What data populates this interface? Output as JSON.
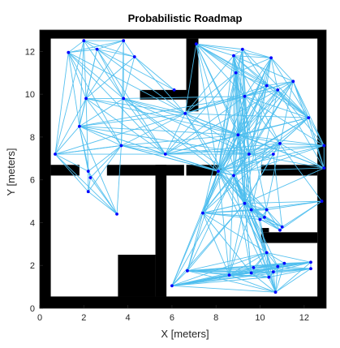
{
  "chart_data": {
    "type": "scatter",
    "title": "Probabilistic Roadmap",
    "xlabel": "X [meters]",
    "ylabel": "Y [meters]",
    "xlim": [
      0,
      13
    ],
    "ylim": [
      0,
      13
    ],
    "xticks": [
      0,
      2,
      4,
      6,
      8,
      10,
      12
    ],
    "yticks": [
      0,
      2,
      4,
      6,
      8,
      10,
      12
    ],
    "grid": false,
    "legend": "none",
    "colors": {
      "edges": "#4dbeee",
      "nodes": "#0000ff",
      "obstacles": "#000000",
      "free": "#ffffff"
    },
    "obstacles": [
      [
        0,
        12.6,
        13,
        0.4
      ],
      [
        0,
        0,
        0.5,
        13
      ],
      [
        12.6,
        0,
        0.4,
        13
      ],
      [
        0,
        0,
        13,
        0.55
      ],
      [
        0.5,
        6.2,
        1.3,
        0.5
      ],
      [
        3.05,
        6.2,
        3.5,
        0.5
      ],
      [
        5.25,
        0.55,
        0.5,
        6.15
      ],
      [
        3.55,
        0.55,
        1.7,
        1.95
      ],
      [
        4.55,
        9.75,
        2.4,
        0.45
      ],
      [
        6.65,
        9.2,
        0.55,
        3.4
      ],
      [
        6.65,
        6.2,
        1.6,
        0.5
      ],
      [
        10.05,
        6.2,
        2.55,
        0.5
      ],
      [
        10.05,
        3.05,
        2.55,
        0.5
      ],
      [
        10.05,
        3.55,
        0.35,
        0.2
      ]
    ],
    "nodes": [
      [
        2.0,
        12.5
      ],
      [
        3.8,
        12.5
      ],
      [
        1.3,
        11.95
      ],
      [
        2.6,
        12.1
      ],
      [
        4.3,
        11.75
      ],
      [
        6.1,
        10.2
      ],
      [
        2.1,
        9.8
      ],
      [
        3.8,
        9.8
      ],
      [
        1.8,
        8.5
      ],
      [
        3.7,
        7.6
      ],
      [
        0.7,
        7.2
      ],
      [
        2.2,
        6.4
      ],
      [
        2.3,
        6.1
      ],
      [
        2.2,
        5.45
      ],
      [
        3.5,
        4.4
      ],
      [
        5.7,
        7.2
      ],
      [
        6.6,
        9.1
      ],
      [
        7.1,
        12.35
      ],
      [
        8.8,
        11.8
      ],
      [
        9.2,
        12.1
      ],
      [
        10.5,
        11.7
      ],
      [
        8.9,
        11.0
      ],
      [
        9.3,
        9.9
      ],
      [
        10.3,
        10.4
      ],
      [
        10.8,
        10.2
      ],
      [
        11.5,
        10.6
      ],
      [
        12.2,
        8.9
      ],
      [
        12.9,
        7.6
      ],
      [
        12.9,
        6.55
      ],
      [
        9.0,
        8.1
      ],
      [
        10.9,
        7.7
      ],
      [
        9.5,
        7.2
      ],
      [
        10.6,
        7.2
      ],
      [
        8.1,
        6.4
      ],
      [
        8.8,
        6.2
      ],
      [
        9.3,
        4.9
      ],
      [
        9.6,
        4.6
      ],
      [
        10.3,
        4.6
      ],
      [
        10.2,
        4.25
      ],
      [
        10.0,
        4.15
      ],
      [
        11.0,
        3.8
      ],
      [
        10.9,
        3.65
      ],
      [
        12.8,
        5.0
      ],
      [
        7.4,
        4.45
      ],
      [
        10.3,
        2.6
      ],
      [
        10.8,
        1.95
      ],
      [
        10.6,
        1.7
      ],
      [
        10.7,
        0.75
      ],
      [
        12.3,
        2.15
      ],
      [
        12.3,
        1.85
      ],
      [
        9.6,
        1.65
      ],
      [
        8.6,
        1.55
      ],
      [
        6.7,
        1.75
      ],
      [
        6.0,
        1.05
      ],
      [
        10.4,
        1.45
      ],
      [
        11.1,
        2.1
      ],
      [
        9.7,
        1.9
      ]
    ],
    "edges": [
      [
        0,
        2
      ],
      [
        0,
        3
      ],
      [
        0,
        1
      ],
      [
        0,
        4
      ],
      [
        0,
        6
      ],
      [
        0,
        7
      ],
      [
        0,
        10
      ],
      [
        0,
        8
      ],
      [
        1,
        3
      ],
      [
        1,
        4
      ],
      [
        1,
        7
      ],
      [
        1,
        6
      ],
      [
        1,
        2
      ],
      [
        1,
        9
      ],
      [
        2,
        3
      ],
      [
        2,
        6
      ],
      [
        2,
        7
      ],
      [
        2,
        8
      ],
      [
        2,
        10
      ],
      [
        2,
        9
      ],
      [
        2,
        16
      ],
      [
        3,
        4
      ],
      [
        3,
        6
      ],
      [
        3,
        7
      ],
      [
        3,
        8
      ],
      [
        3,
        5
      ],
      [
        3,
        15
      ],
      [
        4,
        5
      ],
      [
        4,
        7
      ],
      [
        4,
        6
      ],
      [
        4,
        16
      ],
      [
        6,
        7
      ],
      [
        6,
        8
      ],
      [
        6,
        9
      ],
      [
        6,
        11
      ],
      [
        6,
        15
      ],
      [
        6,
        16
      ],
      [
        6,
        10
      ],
      [
        6,
        29
      ],
      [
        7,
        8
      ],
      [
        7,
        9
      ],
      [
        7,
        16
      ],
      [
        7,
        15
      ],
      [
        7,
        33
      ],
      [
        7,
        29
      ],
      [
        7,
        22
      ],
      [
        8,
        9
      ],
      [
        8,
        10
      ],
      [
        8,
        11
      ],
      [
        8,
        12
      ],
      [
        8,
        15
      ],
      [
        8,
        16
      ],
      [
        8,
        29
      ],
      [
        8,
        31
      ],
      [
        8,
        33
      ],
      [
        8,
        22
      ],
      [
        9,
        10
      ],
      [
        9,
        11
      ],
      [
        9,
        12
      ],
      [
        9,
        13
      ],
      [
        9,
        15
      ],
      [
        9,
        16
      ],
      [
        9,
        33
      ],
      [
        9,
        29
      ],
      [
        10,
        11
      ],
      [
        10,
        13
      ],
      [
        10,
        15
      ],
      [
        10,
        16
      ],
      [
        10,
        9
      ],
      [
        11,
        12
      ],
      [
        11,
        13
      ],
      [
        11,
        14
      ],
      [
        12,
        13
      ],
      [
        12,
        14
      ],
      [
        13,
        14
      ],
      [
        14,
        9
      ],
      [
        14,
        8
      ],
      [
        14,
        10
      ],
      [
        15,
        16
      ],
      [
        15,
        29
      ],
      [
        15,
        31
      ],
      [
        15,
        33
      ],
      [
        15,
        34
      ],
      [
        15,
        21
      ],
      [
        15,
        22
      ],
      [
        15,
        26
      ],
      [
        15,
        27
      ],
      [
        15,
        24
      ],
      [
        15,
        30
      ],
      [
        16,
        17
      ],
      [
        16,
        18
      ],
      [
        16,
        21
      ],
      [
        16,
        22
      ],
      [
        16,
        23
      ],
      [
        16,
        29
      ],
      [
        16,
        26
      ],
      [
        16,
        31
      ],
      [
        16,
        33
      ],
      [
        16,
        25
      ],
      [
        16,
        28
      ],
      [
        17,
        18
      ],
      [
        17,
        19
      ],
      [
        17,
        20
      ],
      [
        17,
        21
      ],
      [
        17,
        22
      ],
      [
        17,
        23
      ],
      [
        17,
        29
      ],
      [
        17,
        24
      ],
      [
        17,
        26
      ],
      [
        17,
        31
      ],
      [
        17,
        33
      ],
      [
        17,
        35
      ],
      [
        18,
        19
      ],
      [
        18,
        20
      ],
      [
        18,
        21
      ],
      [
        18,
        22
      ],
      [
        18,
        23
      ],
      [
        18,
        29
      ],
      [
        18,
        31
      ],
      [
        18,
        33
      ],
      [
        18,
        25
      ],
      [
        18,
        30
      ],
      [
        18,
        26
      ],
      [
        18,
        34
      ],
      [
        18,
        37
      ],
      [
        19,
        20
      ],
      [
        19,
        21
      ],
      [
        19,
        22
      ],
      [
        19,
        23
      ],
      [
        19,
        26
      ],
      [
        19,
        29
      ],
      [
        19,
        31
      ],
      [
        19,
        33
      ],
      [
        19,
        35
      ],
      [
        20,
        21
      ],
      [
        20,
        22
      ],
      [
        20,
        23
      ],
      [
        20,
        24
      ],
      [
        20,
        25
      ],
      [
        20,
        26
      ],
      [
        20,
        29
      ],
      [
        20,
        31
      ],
      [
        20,
        33
      ],
      [
        20,
        34
      ],
      [
        20,
        43
      ],
      [
        21,
        22
      ],
      [
        21,
        23
      ],
      [
        21,
        29
      ],
      [
        21,
        31
      ],
      [
        21,
        33
      ],
      [
        21,
        34
      ],
      [
        21,
        36
      ],
      [
        21,
        43
      ],
      [
        21,
        35
      ],
      [
        22,
        23
      ],
      [
        22,
        24
      ],
      [
        22,
        25
      ],
      [
        22,
        26
      ],
      [
        22,
        27
      ],
      [
        22,
        29
      ],
      [
        22,
        31
      ],
      [
        22,
        33
      ],
      [
        22,
        34
      ],
      [
        22,
        35
      ],
      [
        22,
        42
      ],
      [
        22,
        43
      ],
      [
        23,
        24
      ],
      [
        23,
        25
      ],
      [
        23,
        26
      ],
      [
        23,
        29
      ],
      [
        23,
        31
      ],
      [
        23,
        33
      ],
      [
        23,
        35
      ],
      [
        23,
        43
      ],
      [
        24,
        25
      ],
      [
        24,
        26
      ],
      [
        24,
        27
      ],
      [
        24,
        28
      ],
      [
        24,
        29
      ],
      [
        24,
        33
      ],
      [
        24,
        34
      ],
      [
        24,
        36
      ],
      [
        25,
        26
      ],
      [
        25,
        27
      ],
      [
        25,
        28
      ],
      [
        25,
        29
      ],
      [
        25,
        31
      ],
      [
        25,
        33
      ],
      [
        25,
        34
      ],
      [
        25,
        38
      ],
      [
        26,
        27
      ],
      [
        26,
        28
      ],
      [
        26,
        29
      ],
      [
        26,
        30
      ],
      [
        26,
        31
      ],
      [
        26,
        33
      ],
      [
        26,
        34
      ],
      [
        26,
        43
      ],
      [
        27,
        28
      ],
      [
        27,
        29
      ],
      [
        27,
        30
      ],
      [
        27,
        31
      ],
      [
        27,
        33
      ],
      [
        27,
        34
      ],
      [
        28,
        29
      ],
      [
        28,
        30
      ],
      [
        28,
        31
      ],
      [
        28,
        33
      ],
      [
        28,
        35
      ],
      [
        29,
        30
      ],
      [
        29,
        31
      ],
      [
        29,
        33
      ],
      [
        29,
        34
      ],
      [
        29,
        35
      ],
      [
        29,
        36
      ],
      [
        29,
        43
      ],
      [
        29,
        44
      ],
      [
        29,
        50
      ],
      [
        30,
        31
      ],
      [
        30,
        32
      ],
      [
        30,
        33
      ],
      [
        30,
        34
      ],
      [
        30,
        35
      ],
      [
        31,
        32
      ],
      [
        31,
        33
      ],
      [
        31,
        34
      ],
      [
        31,
        35
      ],
      [
        31,
        36
      ],
      [
        31,
        43
      ],
      [
        32,
        33
      ],
      [
        32,
        34
      ],
      [
        32,
        35
      ],
      [
        32,
        40
      ],
      [
        33,
        34
      ],
      [
        33,
        35
      ],
      [
        33,
        36
      ],
      [
        33,
        37
      ],
      [
        33,
        38
      ],
      [
        33,
        43
      ],
      [
        33,
        44
      ],
      [
        33,
        47
      ],
      [
        33,
        51
      ],
      [
        33,
        52
      ],
      [
        33,
        53
      ],
      [
        34,
        35
      ],
      [
        34,
        36
      ],
      [
        34,
        37
      ],
      [
        34,
        39
      ],
      [
        34,
        43
      ],
      [
        34,
        44
      ],
      [
        34,
        45
      ],
      [
        34,
        46
      ],
      [
        34,
        47
      ],
      [
        34,
        50
      ],
      [
        34,
        51
      ],
      [
        34,
        52
      ],
      [
        34,
        53
      ],
      [
        34,
        54
      ],
      [
        35,
        36
      ],
      [
        35,
        37
      ],
      [
        35,
        38
      ],
      [
        35,
        39
      ],
      [
        35,
        40
      ],
      [
        35,
        43
      ],
      [
        35,
        44
      ],
      [
        35,
        42
      ],
      [
        35,
        50
      ],
      [
        35,
        51
      ],
      [
        35,
        52
      ],
      [
        35,
        53
      ],
      [
        36,
        37
      ],
      [
        36,
        38
      ],
      [
        36,
        39
      ],
      [
        36,
        40
      ],
      [
        36,
        41
      ],
      [
        36,
        43
      ],
      [
        36,
        44
      ],
      [
        36,
        42
      ],
      [
        36,
        47
      ],
      [
        36,
        51
      ],
      [
        37,
        38
      ],
      [
        37,
        39
      ],
      [
        37,
        40
      ],
      [
        37,
        41
      ],
      [
        37,
        42
      ],
      [
        37,
        43
      ],
      [
        38,
        39
      ],
      [
        38,
        40
      ],
      [
        38,
        41
      ],
      [
        38,
        43
      ],
      [
        39,
        40
      ],
      [
        39,
        41
      ],
      [
        39,
        43
      ],
      [
        39,
        44
      ],
      [
        40,
        41
      ],
      [
        40,
        42
      ],
      [
        41,
        42
      ],
      [
        43,
        44
      ],
      [
        43,
        50
      ],
      [
        43,
        51
      ],
      [
        43,
        52
      ],
      [
        43,
        53
      ],
      [
        44,
        45
      ],
      [
        44,
        46
      ],
      [
        44,
        47
      ],
      [
        44,
        48
      ],
      [
        44,
        50
      ],
      [
        44,
        51
      ],
      [
        44,
        52
      ],
      [
        44,
        53
      ],
      [
        44,
        54
      ],
      [
        44,
        55
      ],
      [
        44,
        56
      ],
      [
        45,
        46
      ],
      [
        45,
        47
      ],
      [
        45,
        48
      ],
      [
        45,
        49
      ],
      [
        45,
        51
      ],
      [
        45,
        52
      ],
      [
        45,
        53
      ],
      [
        45,
        54
      ],
      [
        45,
        55
      ],
      [
        46,
        47
      ],
      [
        46,
        48
      ],
      [
        46,
        49
      ],
      [
        46,
        50
      ],
      [
        46,
        52
      ],
      [
        46,
        53
      ],
      [
        47,
        48
      ],
      [
        47,
        49
      ],
      [
        47,
        50
      ],
      [
        47,
        51
      ],
      [
        47,
        52
      ],
      [
        47,
        53
      ],
      [
        47,
        55
      ],
      [
        48,
        49
      ],
      [
        48,
        50
      ],
      [
        48,
        51
      ],
      [
        48,
        52
      ],
      [
        48,
        53
      ],
      [
        48,
        55
      ],
      [
        48,
        56
      ],
      [
        49,
        50
      ],
      [
        49,
        51
      ],
      [
        49,
        52
      ],
      [
        49,
        53
      ],
      [
        49,
        54
      ],
      [
        50,
        51
      ],
      [
        50,
        52
      ],
      [
        50,
        53
      ],
      [
        50,
        54
      ],
      [
        51,
        52
      ],
      [
        51,
        53
      ],
      [
        51,
        54
      ],
      [
        51,
        56
      ],
      [
        52,
        53
      ],
      [
        52,
        54
      ],
      [
        52,
        55
      ],
      [
        52,
        56
      ],
      [
        53,
        54
      ],
      [
        53,
        55
      ],
      [
        53,
        56
      ],
      [
        54,
        55
      ],
      [
        55,
        56
      ],
      [
        45,
        56
      ],
      [
        43,
        35
      ],
      [
        16,
        35
      ],
      [
        9,
        34
      ],
      [
        9,
        31
      ],
      [
        7,
        34
      ],
      [
        3,
        16
      ],
      [
        2,
        15
      ],
      [
        7,
        31
      ]
    ]
  }
}
